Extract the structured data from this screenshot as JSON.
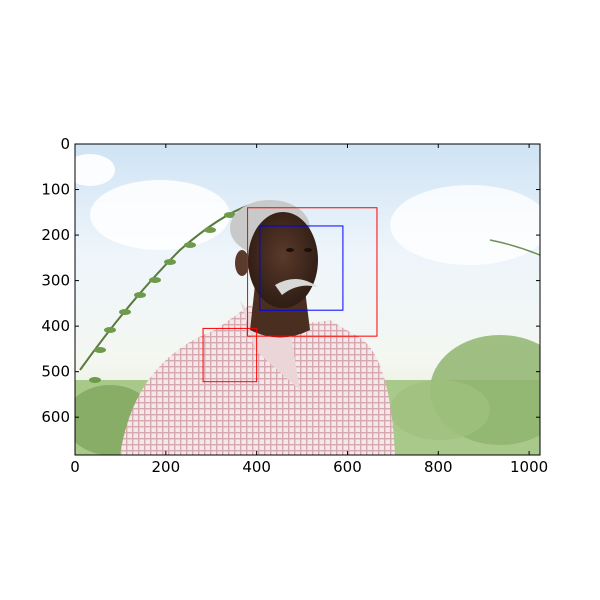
{
  "chart_data": {
    "type": "image_with_boxes",
    "image_subject": "elderly man with grey mustache in checkered shirt outdoors",
    "xlim": [
      0,
      1024
    ],
    "ylim": [
      683,
      0
    ],
    "x_ticks": [
      "0",
      "200",
      "400",
      "600",
      "800",
      "1000"
    ],
    "y_ticks": [
      "0",
      "100",
      "200",
      "300",
      "400",
      "500",
      "600"
    ],
    "x_tick_values": [
      0,
      200,
      400,
      600,
      800,
      1000
    ],
    "y_tick_values": [
      0,
      100,
      200,
      300,
      400,
      500,
      600
    ],
    "boxes": [
      {
        "color": "#ff0000",
        "x0": 380,
        "y0": 140,
        "x1": 665,
        "y1": 422
      },
      {
        "color": "#0000ff",
        "x0": 407,
        "y0": 180,
        "x1": 590,
        "y1": 365
      },
      {
        "color": "#ff0000",
        "x0": 282,
        "y0": 405,
        "x1": 400,
        "y1": 522
      }
    ],
    "grid": false
  }
}
